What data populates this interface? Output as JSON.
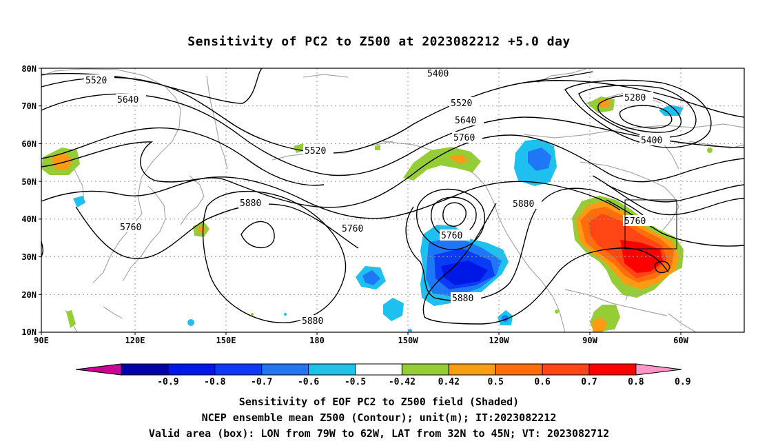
{
  "title": "Sensitivity of PC2 to Z500 at 2023082212 +5.0 day",
  "lat_labels": [
    "80N",
    "70N",
    "60N",
    "50N",
    "40N",
    "30N",
    "20N",
    "10N"
  ],
  "lon_labels": [
    "90E",
    "120E",
    "150E",
    "180",
    "150W",
    "120W",
    "90W",
    "60W"
  ],
  "contour_labels": [
    {
      "id": "c5520-a",
      "text": "5520"
    },
    {
      "id": "c5640-a",
      "text": "5640"
    },
    {
      "id": "c5400-a",
      "text": "5400"
    },
    {
      "id": "c5520-b",
      "text": "5520"
    },
    {
      "id": "c5640-b",
      "text": "5640"
    },
    {
      "id": "c5760-a",
      "text": "5760"
    },
    {
      "id": "c5520-c",
      "text": "5520"
    },
    {
      "id": "c5280",
      "text": "5280"
    },
    {
      "id": "c5400-b",
      "text": "5400"
    },
    {
      "id": "c5880-a",
      "text": "5880"
    },
    {
      "id": "c5760-b",
      "text": "5760"
    },
    {
      "id": "c5760-c",
      "text": "5760"
    },
    {
      "id": "c5760-d",
      "text": "5760"
    },
    {
      "id": "c5880-b",
      "text": "5880"
    },
    {
      "id": "c5760-e",
      "text": "5760"
    },
    {
      "id": "c5880-c",
      "text": "5880"
    },
    {
      "id": "c5880-d",
      "text": "5880"
    }
  ],
  "colorbar": {
    "colors": [
      "#cc0099",
      "#0000a8",
      "#0018e6",
      "#0a3cf5",
      "#1e78f5",
      "#1ec0f0",
      "#ffffff",
      "#96cd37",
      "#ff9a14",
      "#ff6e0a",
      "#ff4614",
      "#ff0000",
      "#ff96c8"
    ],
    "labels": [
      "-0.9",
      "-0.8",
      "-0.7",
      "-0.6",
      "-0.5",
      "-0.42",
      "0.42",
      "0.5",
      "0.6",
      "0.7",
      "0.8",
      "0.9"
    ]
  },
  "footer": {
    "line1": "Sensitivity of EOF PC2 to Z500 field (Shaded)",
    "line2": "NCEP ensemble mean Z500 (Contour); unit(m); IT:2023082212",
    "line3": "Valid area (box): LON from 79W to 62W, LAT from 32N to 45N; VT: 2023082712"
  }
}
